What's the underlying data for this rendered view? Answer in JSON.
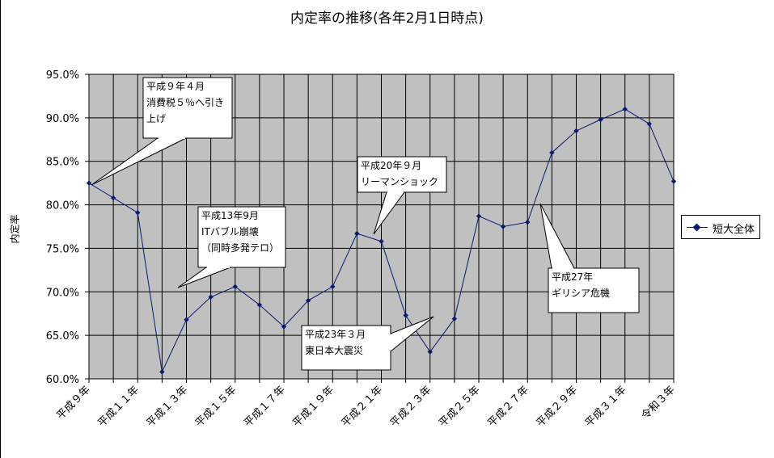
{
  "chart_data": {
    "type": "line",
    "title": "内定率の推移(各年2月1日時点)",
    "ylabel": "内定率",
    "xlabel": "",
    "ylim": [
      60,
      95
    ],
    "yticks": [
      "60.0%",
      "65.0%",
      "70.0%",
      "75.0%",
      "80.0%",
      "85.0%",
      "90.0%",
      "95.0%"
    ],
    "y_tick_values": [
      60,
      65,
      70,
      75,
      80,
      85,
      90,
      95
    ],
    "x_tick_labels": [
      "平成９年",
      "平成１１年",
      "平成１３年",
      "平成１５年",
      "平成１７年",
      "平成１９年",
      "平成２１年",
      "平成２３年",
      "平成２５年",
      "平成２７年",
      "平成２９年",
      "平成３１年",
      "令和３年"
    ],
    "categories": [
      "H9",
      "H10",
      "H11",
      "H12",
      "H13",
      "H14",
      "H15",
      "H16",
      "H17",
      "H18",
      "H19",
      "H20",
      "H21",
      "H22",
      "H23",
      "H24",
      "H25",
      "H26",
      "H27",
      "H28",
      "H29",
      "H30",
      "H31",
      "R2",
      "R3"
    ],
    "grid": true,
    "legend_position": "right",
    "series": [
      {
        "name": "短大全体",
        "color": "#0a1a6e",
        "values": [
          82.5,
          80.8,
          79.1,
          60.8,
          66.8,
          69.4,
          70.6,
          68.5,
          66.0,
          69.0,
          70.6,
          76.7,
          75.8,
          67.3,
          63.1,
          66.9,
          78.7,
          77.5,
          78.0,
          86.0,
          88.5,
          89.8,
          91.0,
          89.3,
          82.7
        ]
      }
    ],
    "annotations": [
      {
        "lines": [
          "平成９年４月",
          "消費税５％へ引き",
          "上げ"
        ],
        "point_index": 0
      },
      {
        "lines": [
          "平成13年9月",
          "ITバブル崩壊",
          "（同時多発テロ）"
        ],
        "point_index": 4
      },
      {
        "lines": [
          "平成20年９月",
          "リーマンショック"
        ],
        "point_index": 12
      },
      {
        "lines": [
          "平成23年３月",
          "東日本大震災"
        ],
        "point_index": 14
      },
      {
        "lines": [
          "平成27年",
          "ギリシア危機"
        ],
        "point_index": 19
      }
    ]
  }
}
